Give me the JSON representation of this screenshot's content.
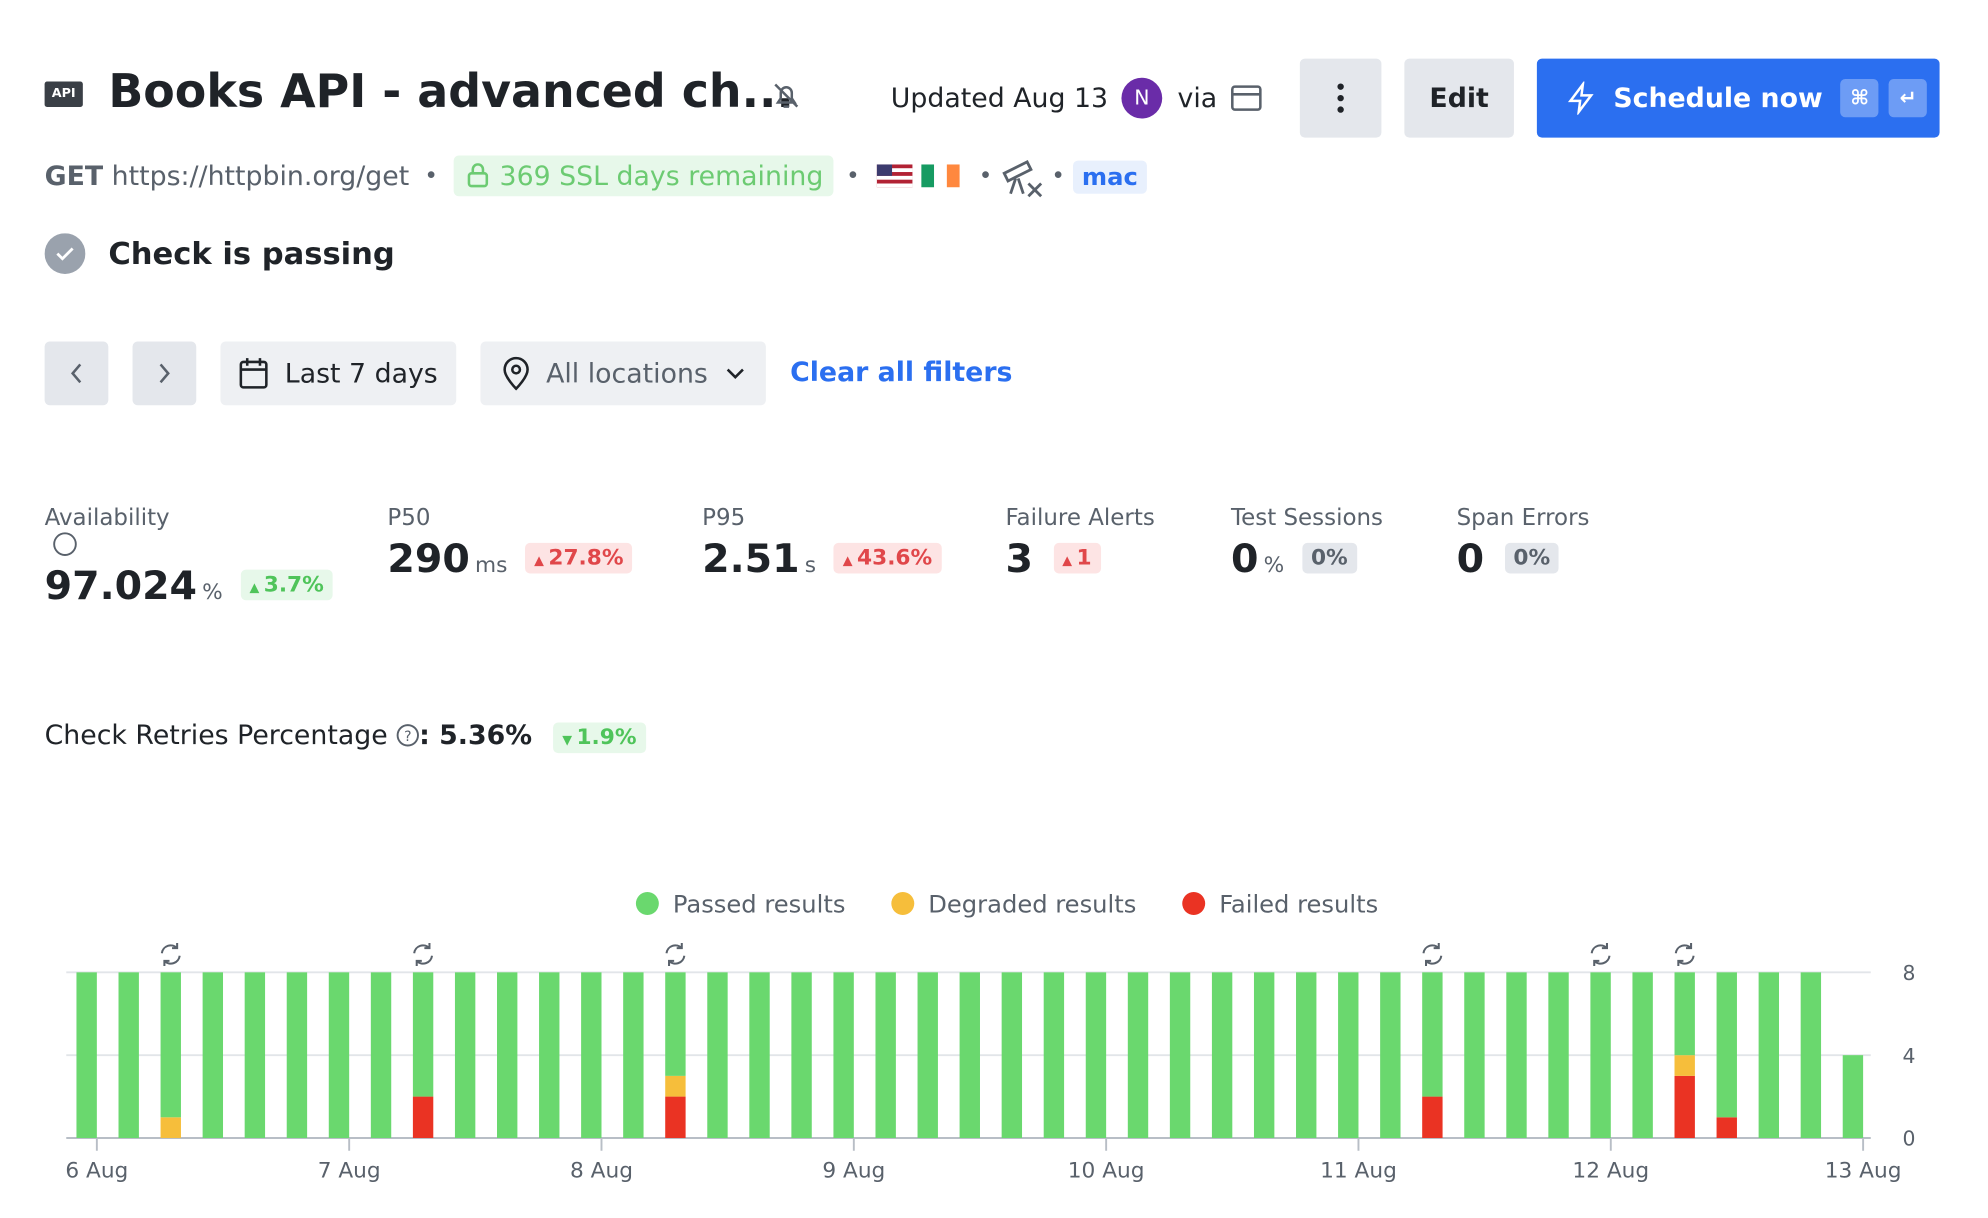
{
  "header": {
    "badge": "API",
    "title": "Books API - advanced ch...",
    "updated": "Updated Aug 13",
    "avatar": "N",
    "via": "via",
    "edit": "Edit",
    "schedule": "Schedule now",
    "key1": "⌘",
    "key2": "↵"
  },
  "subheader": {
    "method": "GET",
    "url": "https://httpbin.org/get",
    "ssl": "369 SSL days remaining",
    "tag": "mac"
  },
  "status": "Check is passing",
  "filters": {
    "range": "Last 7 days",
    "locations": "All locations",
    "clear": "Clear all filters"
  },
  "metrics": [
    {
      "label": "Availability",
      "value": "97.024",
      "unit": "%",
      "change": "3.7%",
      "trend": "up-good"
    },
    {
      "label": "P50",
      "value": "290",
      "unit": "ms",
      "change": "27.8%",
      "trend": "up-bad"
    },
    {
      "label": "P95",
      "value": "2.51",
      "unit": "s",
      "change": "43.6%",
      "trend": "up-bad"
    },
    {
      "label": "Failure Alerts",
      "value": "3",
      "change": "1",
      "trend": "up-bad"
    },
    {
      "label": "Test Sessions",
      "value": "0",
      "unit": "%",
      "change": "0%",
      "trend": "neutral"
    },
    {
      "label": "Span Errors",
      "value": "0",
      "change": "0%",
      "trend": "neutral"
    }
  ],
  "retries": {
    "label": "Check Retries Percentage",
    "value": ": 5.36%",
    "change": "1.9%"
  },
  "chart_data": {
    "type": "stacked-bar",
    "categories": [
      "6 Aug",
      null,
      null,
      null,
      null,
      null,
      "7 Aug",
      null,
      null,
      null,
      null,
      null,
      "8 Aug",
      null,
      null,
      null,
      null,
      null,
      "9 Aug",
      null,
      null,
      null,
      null,
      null,
      "10 Aug",
      null,
      null,
      null,
      null,
      null,
      "11 Aug",
      null,
      null,
      null,
      null,
      null,
      "12 Aug",
      null,
      null,
      null,
      null,
      null,
      "13 Aug"
    ],
    "series": [
      {
        "name": "Passed results",
        "color": "#6ad86e",
        "values": [
          8,
          8,
          7,
          8,
          8,
          8,
          8,
          8,
          6,
          8,
          8,
          8,
          8,
          8,
          5,
          8,
          8,
          8,
          8,
          8,
          8,
          8,
          8,
          8,
          8,
          8,
          8,
          8,
          8,
          8,
          8,
          8,
          6,
          8,
          8,
          8,
          8,
          8,
          4,
          7,
          8,
          8,
          4
        ]
      },
      {
        "name": "Degraded results",
        "color": "#f6be3b",
        "values": [
          0,
          0,
          1,
          0,
          0,
          0,
          0,
          0,
          0,
          0,
          0,
          0,
          0,
          0,
          1,
          0,
          0,
          0,
          0,
          0,
          0,
          0,
          0,
          0,
          0,
          0,
          0,
          0,
          0,
          0,
          0,
          0,
          0,
          0,
          0,
          0,
          0,
          0,
          1,
          0,
          0,
          0,
          0
        ]
      },
      {
        "name": "Failed results",
        "color": "#ea3323",
        "values": [
          0,
          0,
          0,
          0,
          0,
          0,
          0,
          0,
          2,
          0,
          0,
          0,
          0,
          0,
          2,
          0,
          0,
          0,
          0,
          0,
          0,
          0,
          0,
          0,
          0,
          0,
          0,
          0,
          0,
          0,
          0,
          0,
          2,
          0,
          0,
          0,
          0,
          0,
          3,
          1,
          0,
          0,
          0
        ]
      }
    ],
    "stack_order": [
      "Failed results",
      "Degraded results",
      "Passed results"
    ],
    "ylim": [
      0,
      8
    ],
    "yticks": [
      0,
      4,
      8
    ],
    "grid": true,
    "legend": "top"
  }
}
